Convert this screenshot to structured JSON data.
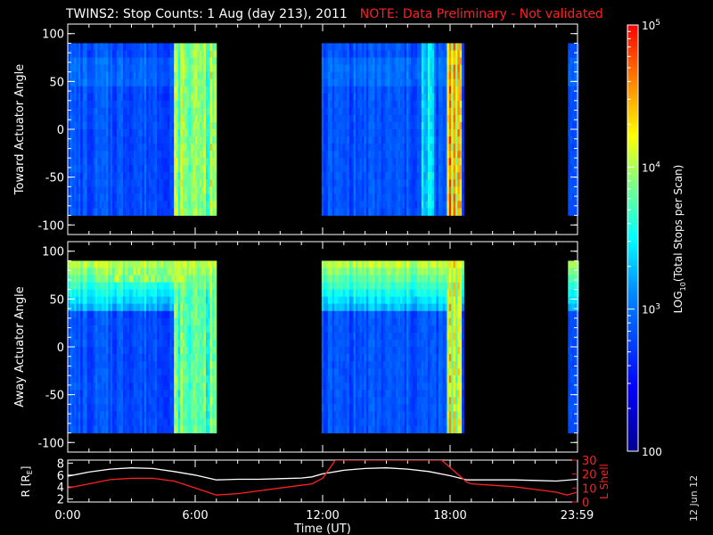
{
  "title": {
    "main": "TWINS2: Stop Counts:  1 Aug (day 213), 2011",
    "note": "NOTE: Data Preliminary - Not validated"
  },
  "datestamp": "12 Jun 12",
  "colors": {
    "title_note": "#ff2020",
    "r_line": "#ffffff",
    "lshell_line": "#ff2020",
    "background": "#000000"
  },
  "chart_data": [
    {
      "type": "heatmap",
      "panel": "toward",
      "ylabel": "Toward Actuator Angle",
      "y_ticks": [
        "100",
        "50",
        "0",
        "-50",
        "-100"
      ],
      "ylim": [
        -110,
        110
      ],
      "y_range_data": [
        -90,
        90
      ],
      "xlim": [
        0,
        24
      ],
      "x_coverage": [
        [
          0.0,
          6.95
        ],
        [
          11.95,
          18.65
        ],
        [
          23.55,
          24.0
        ]
      ],
      "hot_bands": [
        [
          5.0,
          6.95,
          0.75
        ],
        [
          16.6,
          17.25,
          0.55
        ],
        [
          17.85,
          18.55,
          0.95
        ]
      ],
      "colorscale": "log",
      "zlim": [
        100,
        100000
      ]
    },
    {
      "type": "heatmap",
      "panel": "away",
      "ylabel": "Away Actuator Angle",
      "y_ticks": [
        "100",
        "50",
        "0",
        "-50",
        "-100"
      ],
      "ylim": [
        -110,
        110
      ],
      "y_range_data": [
        -90,
        90
      ],
      "xlim": [
        0,
        24
      ],
      "x_coverage": [
        [
          0.0,
          6.95
        ],
        [
          11.95,
          18.65
        ],
        [
          23.55,
          24.0
        ]
      ],
      "hot_bands": [
        [
          5.0,
          6.95,
          0.7
        ],
        [
          17.9,
          18.55,
          0.85
        ]
      ],
      "hot_region": {
        "x": [
          1.3,
          6.95
        ],
        "y": [
          70,
          90
        ],
        "level": 0.6
      },
      "colorscale": "log",
      "zlim": [
        100,
        100000
      ]
    },
    {
      "type": "line",
      "panel": "orbit",
      "xlabel": "Time (UT)",
      "x_ticks": [
        "0:00",
        "6:00",
        "12:00",
        "18:00",
        "23:59"
      ],
      "x_tick_values": [
        0,
        6,
        12,
        18,
        23.98
      ],
      "ylabel_left": "R [R",
      "ylabel_left_sub": "E",
      "ylabel_left_close": "]",
      "y_ticks_left": [
        "2",
        "4",
        "6",
        "8"
      ],
      "ylim_left": [
        1.5,
        8.5
      ],
      "ylabel_right": "L Shell",
      "y_ticks_right": [
        "0",
        "10",
        "20",
        "30"
      ],
      "ylim_right": [
        0,
        30
      ],
      "series": [
        {
          "axis": "left",
          "color": "#ffffff",
          "x": [
            0,
            1,
            2,
            3,
            4,
            5,
            6,
            7,
            8,
            9,
            10,
            11,
            11.5,
            12,
            13,
            14,
            15,
            16,
            17,
            18,
            18.8,
            19,
            20,
            21,
            22,
            23,
            24
          ],
          "values": [
            5.8,
            6.5,
            7.0,
            7.2,
            7.1,
            6.6,
            6.0,
            5.2,
            5.3,
            5.3,
            5.4,
            5.5,
            5.7,
            6.2,
            6.8,
            7.1,
            7.2,
            7.0,
            6.6,
            5.9,
            5.2,
            5.2,
            5.2,
            5.2,
            5.1,
            5.0,
            5.3
          ]
        },
        {
          "axis": "right",
          "color": "#ff2020",
          "x": [
            0,
            1,
            2,
            3,
            4,
            5,
            6,
            7,
            8,
            9,
            10,
            11,
            11.5,
            12,
            12.6,
            17.6,
            18.2,
            18.8,
            19,
            20,
            21,
            22,
            23,
            23.5,
            24
          ],
          "values": [
            10,
            13,
            16,
            17,
            17,
            15,
            10,
            5,
            6,
            8,
            10,
            12,
            13,
            17,
            30,
            30,
            22,
            14,
            13,
            12,
            11,
            9,
            7,
            5,
            7
          ]
        }
      ]
    }
  ],
  "colorbar": {
    "label": "LOG",
    "label_sub": "10",
    "label_rest": "(Total Stops per Scan)",
    "ticks": [
      {
        "base": "10",
        "exp": "5",
        "value": 100000
      },
      {
        "base": "10",
        "exp": "4",
        "value": 10000
      },
      {
        "base": "10",
        "exp": "3",
        "value": 1000
      },
      {
        "base": "100",
        "exp": "",
        "value": 100
      }
    ],
    "scale": "log",
    "range": [
      100,
      100000
    ]
  }
}
